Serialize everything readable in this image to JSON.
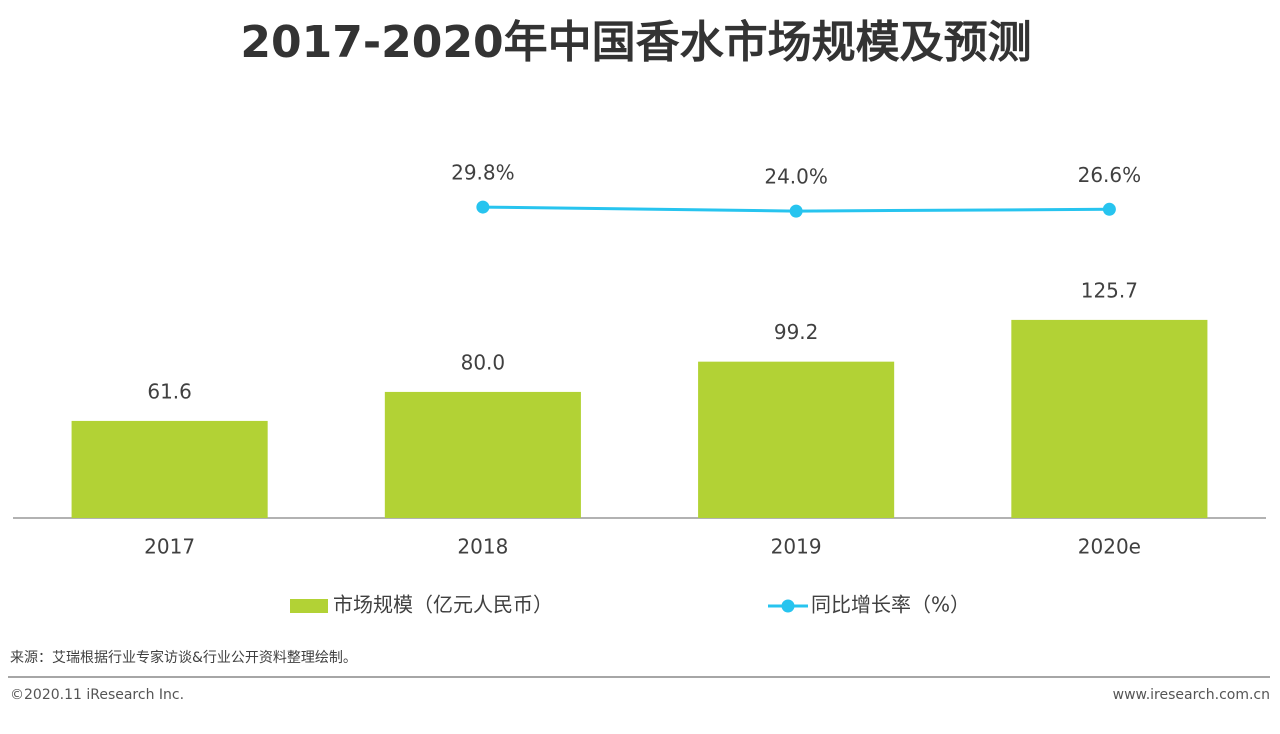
{
  "chart_data": {
    "type": "bar-line",
    "title": "2017-2020年中国香水市场规模及预测",
    "categories": [
      "2017",
      "2018",
      "2019",
      "2020e"
    ],
    "series": [
      {
        "name": "市场规模（亿元人民币）",
        "type": "bar",
        "color": "#b2d235",
        "values": [
          61.6,
          80.0,
          99.2,
          125.7
        ],
        "value_labels": [
          "61.6",
          "80.0",
          "99.2",
          "125.7"
        ]
      },
      {
        "name": "同比增长率（%）",
        "type": "line",
        "axis": "y2",
        "color": "#27c4ef",
        "values": [
          null,
          29.8,
          24.0,
          26.6
        ],
        "value_labels": [
          null,
          "29.8%",
          "24.0%",
          "26.6%"
        ]
      }
    ],
    "ylim": [
      0,
      250
    ],
    "y2lim": [
      -420,
      150
    ],
    "source": "来源：艾瑞根据行业专家访谈&行业公开资料整理绘制。",
    "copyright": "©2020.11 iResearch Inc.",
    "website": "www.iresearch.com.cn"
  }
}
